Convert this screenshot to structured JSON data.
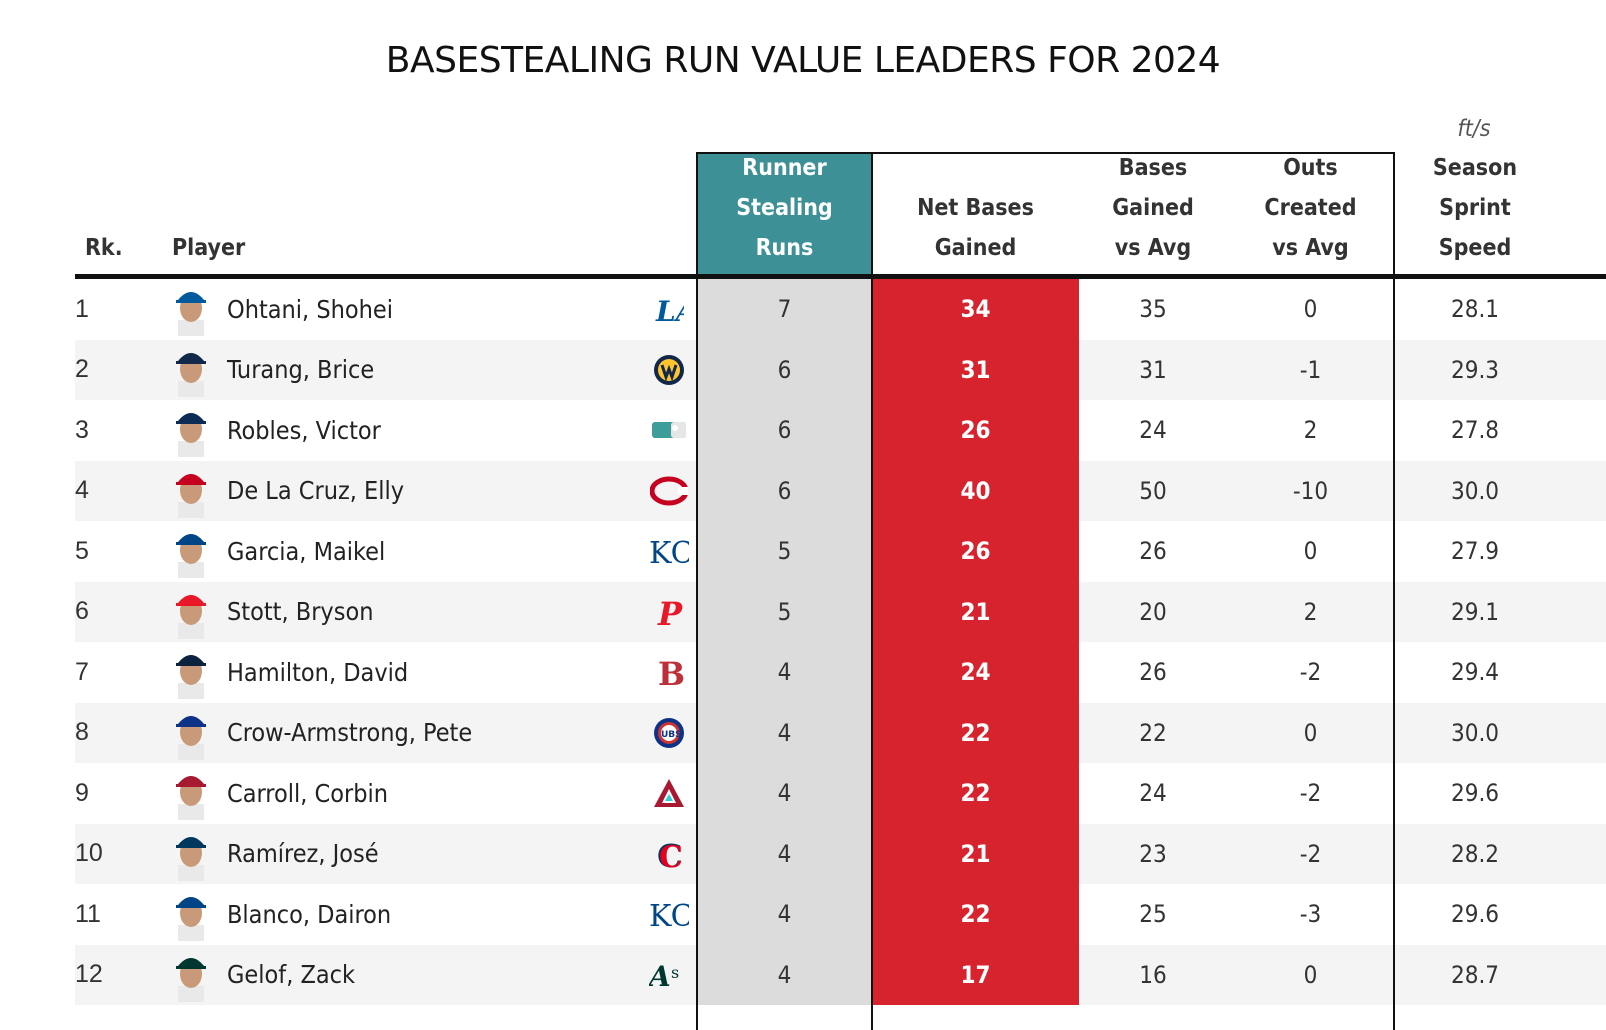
{
  "chart_data": {
    "type": "table",
    "title": "BASESTEALING RUN VALUE LEADERS FOR 2024",
    "columns": {
      "rank": "Rk.",
      "player": "Player",
      "rsr": [
        "Runner",
        "Stealing",
        "Runs"
      ],
      "net": [
        "Net Bases",
        "Gained"
      ],
      "bga": [
        "Bases",
        "Gained",
        "vs Avg"
      ],
      "oca": [
        "Outs",
        "Created",
        "vs Avg"
      ],
      "spd": [
        "Season",
        "Sprint",
        "Speed"
      ],
      "spd_unit": "ft/s"
    },
    "rows": [
      {
        "rank": "1",
        "player": "Ohtani, Shohei",
        "team_logo": "dodgers-logo",
        "rsr": "7",
        "net": "34",
        "bga": "35",
        "oca": "0",
        "spd": "28.1"
      },
      {
        "rank": "2",
        "player": "Turang, Brice",
        "team_logo": "brewers-logo",
        "rsr": "6",
        "net": "31",
        "bga": "31",
        "oca": "-1",
        "spd": "29.3"
      },
      {
        "rank": "3",
        "player": "Robles, Victor",
        "team_logo": "mlb-logo",
        "rsr": "6",
        "net": "26",
        "bga": "24",
        "oca": "2",
        "spd": "27.8"
      },
      {
        "rank": "4",
        "player": "De La Cruz, Elly",
        "team_logo": "reds-logo",
        "rsr": "6",
        "net": "40",
        "bga": "50",
        "oca": "-10",
        "spd": "30.0"
      },
      {
        "rank": "5",
        "player": "Garcia, Maikel",
        "team_logo": "royals-logo",
        "rsr": "5",
        "net": "26",
        "bga": "26",
        "oca": "0",
        "spd": "27.9"
      },
      {
        "rank": "6",
        "player": "Stott, Bryson",
        "team_logo": "phillies-logo",
        "rsr": "5",
        "net": "21",
        "bga": "20",
        "oca": "2",
        "spd": "29.1"
      },
      {
        "rank": "7",
        "player": "Hamilton, David",
        "team_logo": "red-sox-logo",
        "rsr": "4",
        "net": "24",
        "bga": "26",
        "oca": "-2",
        "spd": "29.4"
      },
      {
        "rank": "8",
        "player": "Crow-Armstrong, Pete",
        "team_logo": "cubs-logo",
        "rsr": "4",
        "net": "22",
        "bga": "22",
        "oca": "0",
        "spd": "30.0"
      },
      {
        "rank": "9",
        "player": "Carroll, Corbin",
        "team_logo": "diamondbacks-logo",
        "rsr": "4",
        "net": "22",
        "bga": "24",
        "oca": "-2",
        "spd": "29.6"
      },
      {
        "rank": "10",
        "player": "Ramírez, José",
        "team_logo": "guardians-logo",
        "rsr": "4",
        "net": "21",
        "bga": "23",
        "oca": "-2",
        "spd": "28.2"
      },
      {
        "rank": "11",
        "player": "Blanco, Dairon",
        "team_logo": "royals-logo",
        "rsr": "4",
        "net": "22",
        "bga": "25",
        "oca": "-3",
        "spd": "29.6"
      },
      {
        "rank": "12",
        "player": "Gelof, Zack",
        "team_logo": "athletics-logo",
        "rsr": "4",
        "net": "17",
        "bga": "16",
        "oca": "0",
        "spd": "28.7"
      }
    ],
    "colors": {
      "highlight_header": "#3d9196",
      "highlight_column": "#d7232d",
      "shaded_column": "#dcdcdc"
    }
  }
}
